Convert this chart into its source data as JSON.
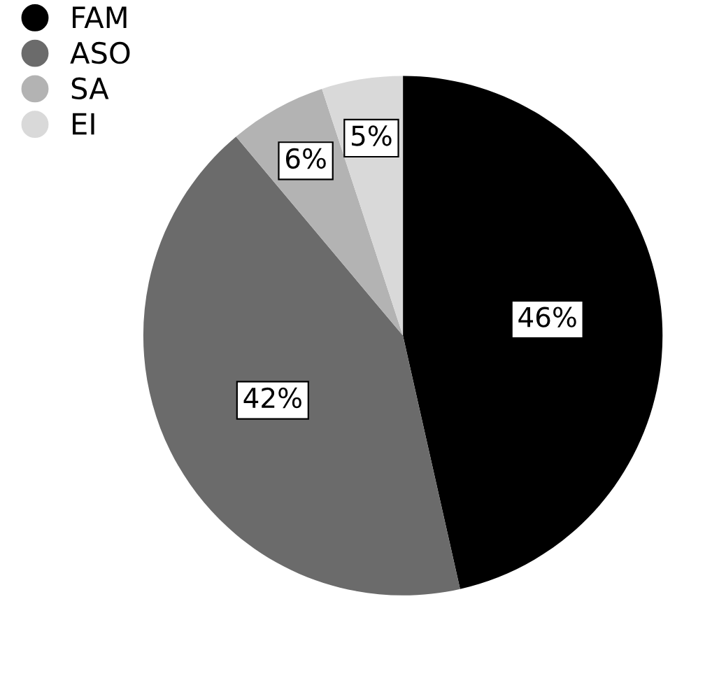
{
  "chart_data": {
    "type": "pie",
    "categories": [
      "FAM",
      "ASO",
      "SA",
      "EI"
    ],
    "values": [
      46,
      42,
      6,
      5
    ],
    "colors": [
      "#000000",
      "#6b6b6b",
      "#b3b3b3",
      "#d9d9d9"
    ],
    "value_labels": [
      "46%",
      "42%",
      "6%",
      "5%"
    ],
    "legend": "top left"
  }
}
